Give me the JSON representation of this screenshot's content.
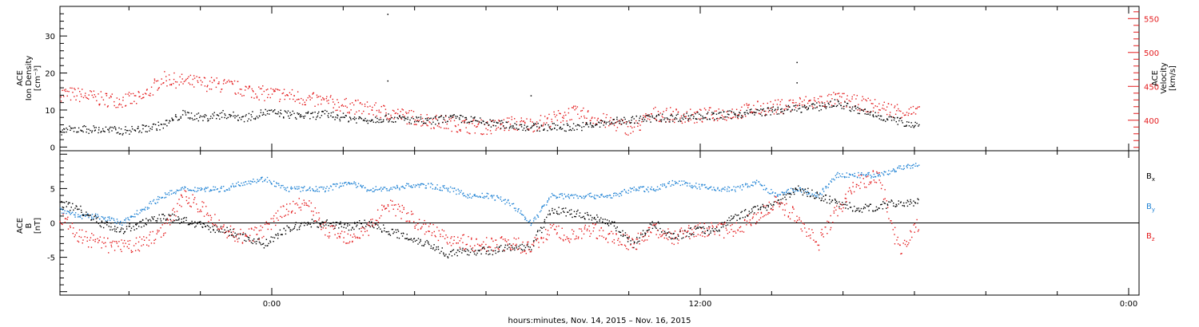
{
  "chart_data": [
    {
      "panel": "top",
      "type": "scatter",
      "left_axis": {
        "label_lines": [
          "ACE",
          "Ion Density",
          "[cm⁻³]"
        ],
        "ylim": [
          -1,
          38
        ],
        "ticks": [
          0,
          10,
          20,
          30
        ],
        "tick_labels": [
          "0",
          "10",
          "20",
          "30"
        ]
      },
      "right_axis": {
        "label_lines": [
          "ACE",
          "Velocity",
          "[km/s]"
        ],
        "ylim": [
          355,
          568
        ],
        "ticks": [
          400,
          450,
          500,
          550
        ],
        "tick_labels": [
          "400",
          "450",
          "500",
          "550"
        ],
        "color": "#e41a1c"
      },
      "series": [
        {
          "color": "#000000",
          "axis": "left",
          "points": [
            [
              0,
              4.5
            ],
            [
              1,
              5
            ],
            [
              2,
              4.8
            ],
            [
              3,
              4.5
            ],
            [
              4,
              5
            ],
            [
              5,
              6
            ],
            [
              6,
              9
            ],
            [
              7,
              8
            ],
            [
              8,
              9
            ],
            [
              9,
              8
            ],
            [
              10,
              9.5
            ],
            [
              11,
              9
            ],
            [
              12,
              8.5
            ],
            [
              13,
              9
            ],
            [
              14,
              8
            ],
            [
              15,
              7.5
            ],
            [
              16,
              8
            ],
            [
              17,
              7.5
            ],
            [
              18,
              7
            ],
            [
              19,
              8
            ],
            [
              20,
              7.5
            ],
            [
              21,
              6.5
            ],
            [
              22,
              6
            ],
            [
              23,
              5.5
            ],
            [
              24,
              5.5
            ],
            [
              25,
              5.5
            ],
            [
              26,
              6
            ],
            [
              27,
              7
            ],
            [
              28,
              7.5
            ],
            [
              29,
              8
            ],
            [
              30,
              8
            ],
            [
              31,
              8.5
            ],
            [
              32,
              8.5
            ],
            [
              33,
              9
            ],
            [
              34,
              9.5
            ],
            [
              35,
              10
            ],
            [
              36,
              10.5
            ],
            [
              37,
              11
            ],
            [
              38,
              12
            ],
            [
              39,
              10
            ],
            [
              40,
              8.5
            ],
            [
              41,
              7
            ],
            [
              42,
              6
            ]
          ]
        },
        {
          "color": "#e41a1c",
          "axis": "right",
          "points": [
            [
              0,
              440
            ],
            [
              1,
              438
            ],
            [
              2,
              432
            ],
            [
              3,
              430
            ],
            [
              4,
              433
            ],
            [
              5,
              462
            ],
            [
              6,
              458
            ],
            [
              7,
              455
            ],
            [
              8,
              452
            ],
            [
              9,
              446
            ],
            [
              10,
              440
            ],
            [
              11,
              438
            ],
            [
              12,
              432
            ],
            [
              13,
              428
            ],
            [
              14,
              422
            ],
            [
              15,
              418
            ],
            [
              16,
              412
            ],
            [
              17,
              406
            ],
            [
              18,
              400
            ],
            [
              19,
              396
            ],
            [
              20,
              392
            ],
            [
              21,
              390
            ],
            [
              22,
              396
            ],
            [
              23,
              394
            ],
            [
              24,
              402
            ],
            [
              25,
              412
            ],
            [
              26,
              405
            ],
            [
              27,
              396
            ],
            [
              28,
              388
            ],
            [
              29,
              410
            ],
            [
              30,
              408
            ],
            [
              31,
              406
            ],
            [
              32,
              410
            ],
            [
              33,
              412
            ],
            [
              34,
              418
            ],
            [
              35,
              420
            ],
            [
              36,
              425
            ],
            [
              37,
              428
            ],
            [
              38,
              432
            ],
            [
              39,
              426
            ],
            [
              40,
              420
            ],
            [
              41,
              415
            ],
            [
              42,
              410
            ]
          ]
        }
      ]
    },
    {
      "panel": "bottom",
      "type": "scatter",
      "left_axis": {
        "label_lines": [
          "ACE",
          "B",
          "[nT]"
        ],
        "ylim": [
          -10.5,
          10.5
        ],
        "ticks": [
          -5,
          0,
          5
        ],
        "tick_labels": [
          "-5",
          "0",
          "5"
        ]
      },
      "legend": [
        {
          "label": "B",
          "sub": "x",
          "color": "#000000"
        },
        {
          "label": "B",
          "sub": "y",
          "color": "#1f82d4"
        },
        {
          "label": "B",
          "sub": "z",
          "color": "#e41a1c"
        }
      ],
      "series": [
        {
          "color": "#000000",
          "name": "Bx",
          "points": [
            [
              0,
              3
            ],
            [
              1,
              2
            ],
            [
              2,
              0
            ],
            [
              3,
              -1
            ],
            [
              4,
              0
            ],
            [
              5,
              1
            ],
            [
              6,
              0.5
            ],
            [
              7,
              -0.5
            ],
            [
              8,
              -1
            ],
            [
              9,
              -2
            ],
            [
              10,
              -3
            ],
            [
              11,
              -1
            ],
            [
              12,
              0
            ],
            [
              13,
              0
            ],
            [
              14,
              -0.5
            ],
            [
              15,
              0
            ],
            [
              16,
              -1
            ],
            [
              17,
              -2
            ],
            [
              18,
              -3
            ],
            [
              19,
              -4.5
            ],
            [
              20,
              -4
            ],
            [
              21,
              -4
            ],
            [
              22,
              -3.5
            ],
            [
              23,
              -3.5
            ],
            [
              24,
              2
            ],
            [
              25,
              1.5
            ],
            [
              26,
              1
            ],
            [
              27,
              0
            ],
            [
              28,
              -3
            ],
            [
              29,
              0
            ],
            [
              30,
              -2
            ],
            [
              31,
              -1
            ],
            [
              32,
              -1
            ],
            [
              33,
              1
            ],
            [
              34,
              2
            ],
            [
              35,
              3
            ],
            [
              36,
              5
            ],
            [
              37,
              4
            ],
            [
              38,
              3
            ],
            [
              39,
              2
            ],
            [
              40,
              2.5
            ],
            [
              41,
              3
            ],
            [
              42,
              3
            ]
          ]
        },
        {
          "color": "#1f82d4",
          "name": "By",
          "points": [
            [
              0,
              2
            ],
            [
              1,
              1
            ],
            [
              2,
              1
            ],
            [
              3,
              0
            ],
            [
              4,
              2
            ],
            [
              5,
              4
            ],
            [
              6,
              5
            ],
            [
              7,
              5
            ],
            [
              8,
              5
            ],
            [
              9,
              6
            ],
            [
              10,
              6.5
            ],
            [
              11,
              5
            ],
            [
              12,
              5
            ],
            [
              13,
              5
            ],
            [
              14,
              6
            ],
            [
              15,
              5
            ],
            [
              16,
              5
            ],
            [
              17,
              5.5
            ],
            [
              18,
              5.5
            ],
            [
              19,
              5
            ],
            [
              20,
              4
            ],
            [
              21,
              4
            ],
            [
              22,
              3
            ],
            [
              23,
              0
            ],
            [
              24,
              4
            ],
            [
              25,
              4
            ],
            [
              26,
              4
            ],
            [
              27,
              4
            ],
            [
              28,
              5
            ],
            [
              29,
              5
            ],
            [
              30,
              6
            ],
            [
              31,
              5.5
            ],
            [
              32,
              5
            ],
            [
              33,
              5
            ],
            [
              34,
              6
            ],
            [
              35,
              4
            ],
            [
              36,
              5
            ],
            [
              37,
              4
            ],
            [
              38,
              7
            ],
            [
              39,
              7
            ],
            [
              40,
              7
            ],
            [
              41,
              8
            ],
            [
              42,
              8.5
            ]
          ]
        },
        {
          "color": "#e41a1c",
          "name": "Bz",
          "points": [
            [
              0,
              1
            ],
            [
              1,
              -2
            ],
            [
              2,
              -3
            ],
            [
              3,
              -3.5
            ],
            [
              4,
              -3
            ],
            [
              5,
              -1
            ],
            [
              6,
              4
            ],
            [
              7,
              2
            ],
            [
              8,
              -1
            ],
            [
              9,
              -2
            ],
            [
              10,
              -1
            ],
            [
              11,
              2
            ],
            [
              12,
              3
            ],
            [
              13,
              -1
            ],
            [
              14,
              -2
            ],
            [
              15,
              -1
            ],
            [
              16,
              3
            ],
            [
              17,
              1
            ],
            [
              18,
              -1
            ],
            [
              19,
              -2
            ],
            [
              20,
              -3
            ],
            [
              21,
              -3
            ],
            [
              22,
              -3
            ],
            [
              23,
              -3.5
            ],
            [
              24,
              -1
            ],
            [
              25,
              -2
            ],
            [
              26,
              -1
            ],
            [
              27,
              -2
            ],
            [
              28,
              -3
            ],
            [
              29,
              -1
            ],
            [
              30,
              -2
            ],
            [
              31,
              -1
            ],
            [
              32,
              -1
            ],
            [
              33,
              -1
            ],
            [
              34,
              1
            ],
            [
              35,
              3
            ],
            [
              36,
              1
            ],
            [
              37,
              -3
            ],
            [
              38,
              2
            ],
            [
              39,
              6
            ],
            [
              40,
              7
            ],
            [
              41,
              -4
            ],
            [
              42,
              0
            ]
          ]
        }
      ]
    }
  ],
  "x_axis": {
    "tick_labels": [
      "0:00",
      "12:00",
      "0:00"
    ],
    "xlabel": "hours:minutes, Nov. 14, 2015 – Nov. 16, 2015"
  },
  "scattered_outliers_top": [
    [
      16,
      36
    ],
    [
      16,
      18
    ],
    [
      23,
      14
    ],
    [
      36,
      23
    ],
    [
      36,
      17.5
    ]
  ]
}
